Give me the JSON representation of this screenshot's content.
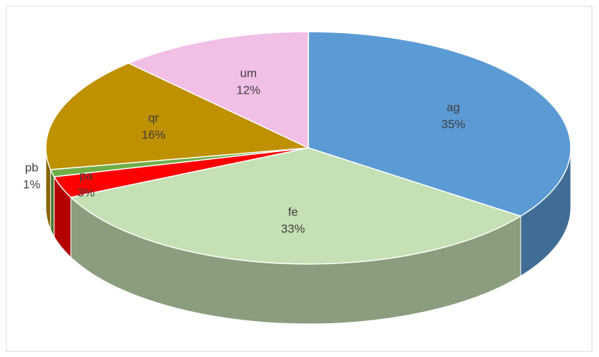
{
  "chart_data": {
    "type": "pie3d",
    "categories": [
      "ag",
      "fe",
      "pa",
      "pb",
      "qr",
      "um"
    ],
    "values": [
      35,
      33,
      3,
      1,
      16,
      12
    ],
    "value_labels": [
      "35%",
      "33%",
      "3%",
      "1%",
      "16%",
      "12%"
    ],
    "colors": [
      "#5b9bd5",
      "#c5e0b4",
      "#ff0000",
      "#70ad47",
      "#bf9000",
      "#f2bfe6"
    ]
  }
}
